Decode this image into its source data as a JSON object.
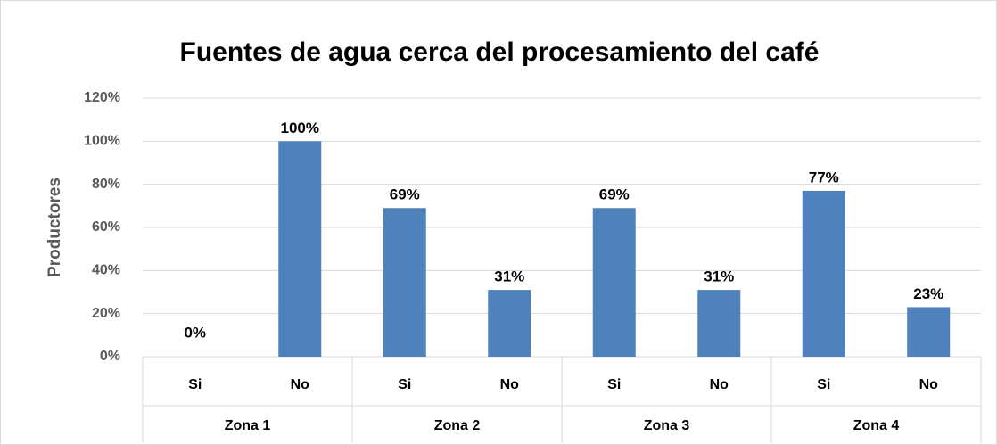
{
  "chart_data": {
    "type": "bar",
    "title": "Fuentes de agua cerca del procesamiento del café",
    "y_label": "Productores",
    "categories": [
      "Si",
      "No",
      "Si",
      "No",
      "Si",
      "No",
      "Si",
      "No"
    ],
    "groups": [
      "Zona 1",
      "Zona 2",
      "Zona 3",
      "Zona 4"
    ],
    "values": [
      0,
      100,
      69,
      31,
      69,
      31,
      77,
      23
    ],
    "value_labels": [
      "0%",
      "100%",
      "69%",
      "31%",
      "69%",
      "31%",
      "77%",
      "23%"
    ],
    "color": "#4f81bd",
    "ylim": [
      0,
      120
    ],
    "yticks": [
      {
        "value": 0,
        "label": "0%"
      },
      {
        "value": 20,
        "label": "20%"
      },
      {
        "value": 40,
        "label": "40%"
      },
      {
        "value": 60,
        "label": "60%"
      },
      {
        "value": 80,
        "label": "80%"
      },
      {
        "value": 100,
        "label": "100%"
      },
      {
        "value": 120,
        "label": "120%"
      }
    ],
    "grid": true
  }
}
